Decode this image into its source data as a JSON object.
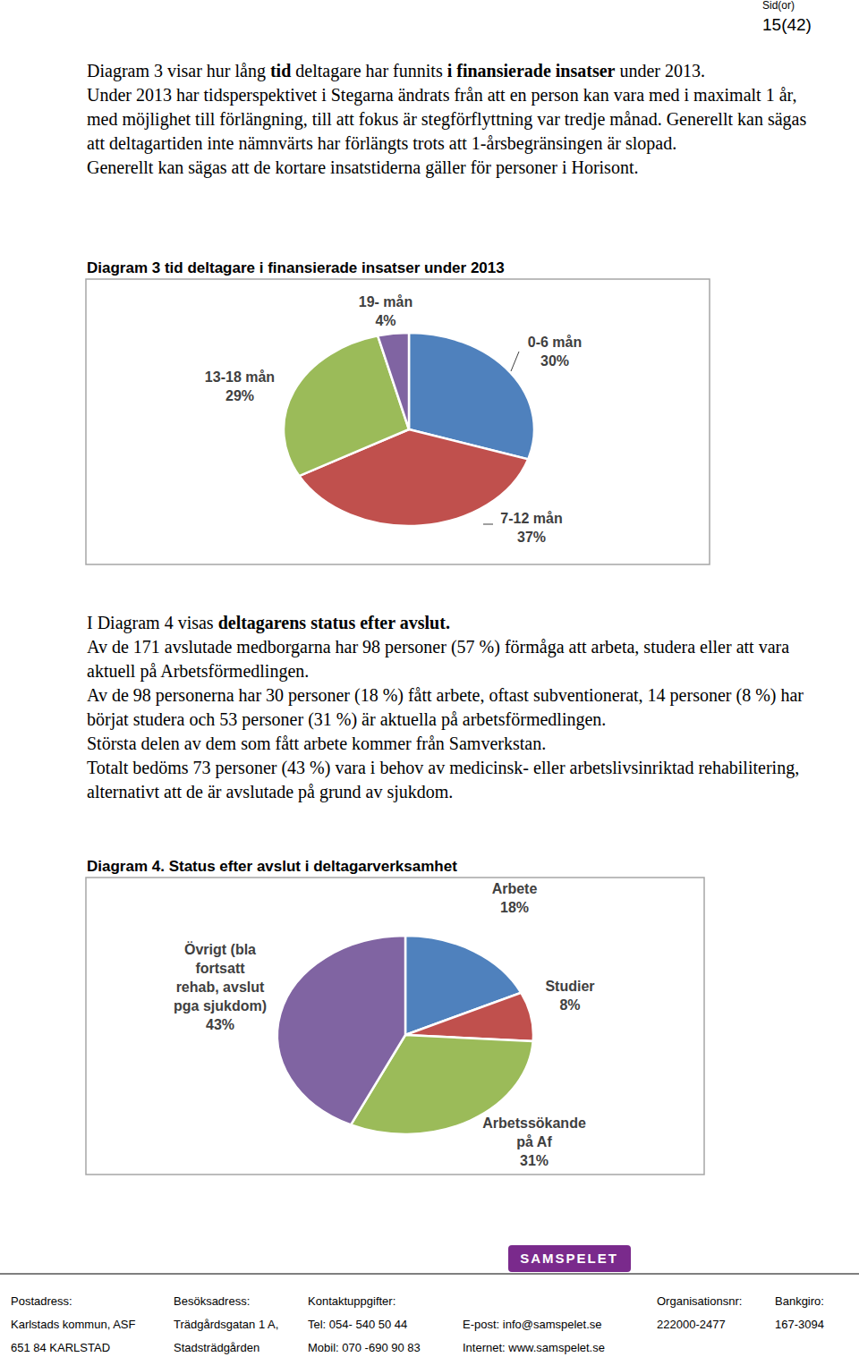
{
  "header": {
    "label": "Sid(or)",
    "page": "15(42)"
  },
  "intro": [
    {
      "runs": [
        {
          "text": "Diagram 3 visar hur lång ",
          "bold": false
        },
        {
          "text": "tid",
          "bold": true
        },
        {
          "text": " deltagare har funnits ",
          "bold": false
        },
        {
          "text": "i finansierade insatser",
          "bold": true
        },
        {
          "text": " under 2013.",
          "bold": false
        }
      ]
    },
    {
      "runs": [
        {
          "text": "Under 2013 har tidsperspektivet i Stegarna ändrats från att en person kan vara med i maximalt 1 år, med möjlighet till förlängning, till att fokus är stegförflyttning var tredje månad. Generellt kan sägas att deltagartiden inte nämnvärts har förlängts trots att 1-årsbegränsingen är slopad.",
          "bold": false
        }
      ]
    },
    {
      "runs": [
        {
          "text": "Generellt kan sägas att de kortare insatstiderna gäller för personer i Horisont.",
          "bold": false
        }
      ]
    }
  ],
  "chart_data": [
    {
      "type": "pie",
      "title": "Diagram 3 tid deltagare i finansierade insatser under 2013",
      "categories": [
        "0-6 mån",
        "7-12 mån",
        "13-18 mån",
        "19- mån"
      ],
      "values": [
        30,
        37,
        29,
        4
      ],
      "value_labels": [
        "30%",
        "37%",
        "29%",
        "4%"
      ],
      "colors": [
        "#4f81bd",
        "#c0504d",
        "#9bbb59",
        "#8064a2"
      ],
      "data_labels": true
    },
    {
      "type": "pie",
      "title": "Diagram 4.  Status efter avslut i deltagarverksamhet",
      "categories": [
        "Arbete",
        "Studier",
        "Arbetssökande på Af",
        "Övrigt (bla fortsatt rehab, avslut pga sjukdom)"
      ],
      "values": [
        18,
        8,
        31,
        43
      ],
      "value_labels": [
        "18%",
        "8%",
        "31%",
        "43%"
      ],
      "colors": [
        "#4f81bd",
        "#c0504d",
        "#9bbb59",
        "#8064a2"
      ],
      "data_labels": true
    }
  ],
  "status_text": [
    {
      "runs": [
        {
          "text": "I Diagram 4 visas ",
          "bold": false
        },
        {
          "text": "deltagarens status efter avslut.",
          "bold": true
        }
      ]
    },
    {
      "runs": [
        {
          "text": "Av de 171 avslutade medborgarna har 98 personer (57 %) förmåga att arbeta, studera eller att vara aktuell på Arbetsförmedlingen.",
          "bold": false
        }
      ]
    },
    {
      "runs": [
        {
          "text": "Av de 98 personerna har 30 personer (18 %) fått arbete, oftast subventionerat, 14 personer (8 %) har börjat studera och 53 personer (31 %) är aktuella på arbetsförmedlingen.",
          "bold": false
        }
      ]
    },
    {
      "runs": [
        {
          "text": "Största delen av dem som fått arbete kommer från Samverkstan.",
          "bold": false
        }
      ]
    },
    {
      "runs": [
        {
          "text": "Totalt bedöms 73 personer (43 %) vara  i behov av medicinsk- eller arbetslivsinriktad rehabilitering, alternativt att de är avslutade på grund av sjukdom.",
          "bold": false
        }
      ]
    }
  ],
  "footer": {
    "logo": "SAMSPELET",
    "columns": [
      {
        "label": "Postadress:",
        "lines": [
          "Karlstads kommun, ASF",
          "651 84  KARLSTAD"
        ]
      },
      {
        "label": "Besöksadress:",
        "lines": [
          "Trädgårdsgatan 1 A,",
          "Stadsträdgården"
        ]
      },
      {
        "label": "Kontaktuppgifter:",
        "lines": [
          "Tel: 054- 540 50 44",
          "Mobil: 070 -690 90 83"
        ]
      },
      {
        "lines": [
          "E-post: info@samspelet.se",
          "Internet: www.samspelet.se"
        ]
      },
      {
        "label": "Organisationsnr:",
        "lines": [
          "222000-2477"
        ]
      },
      {
        "label": "Bankgiro:",
        "lines": [
          "167-3094"
        ]
      }
    ]
  }
}
